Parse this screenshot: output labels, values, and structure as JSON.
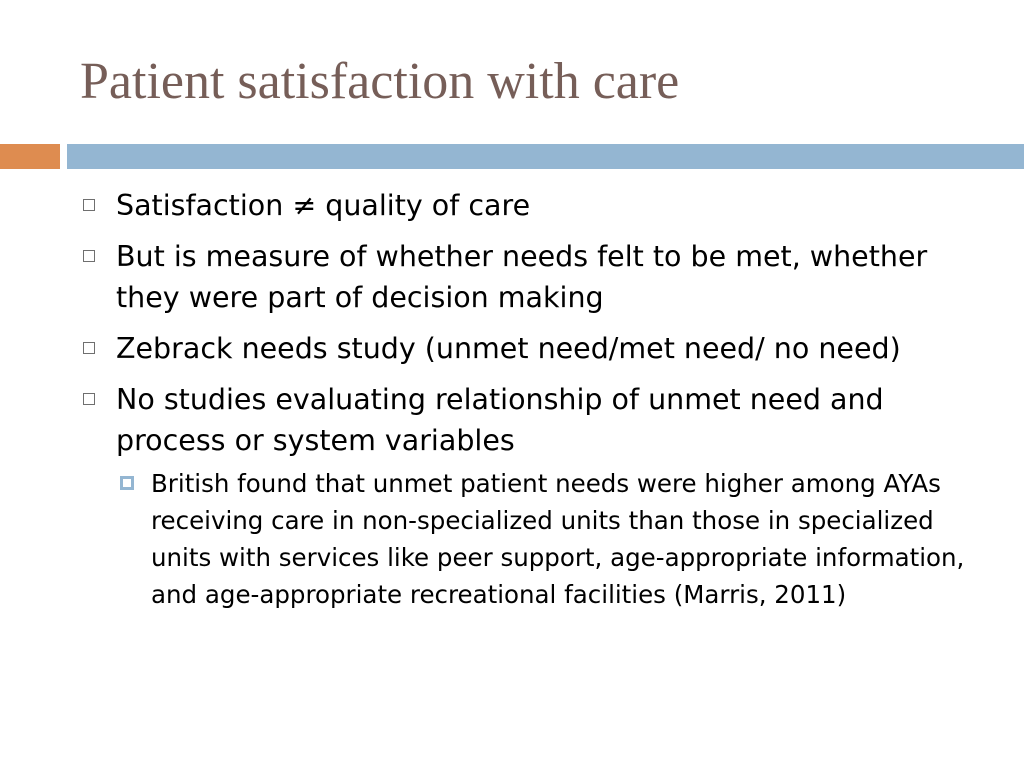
{
  "slide": {
    "title": "Patient satisfaction with care",
    "bullets": [
      {
        "text": "Satisfaction ≠ quality of care"
      },
      {
        "text": "But is measure of whether needs felt to be met, whether they were part of decision making"
      },
      {
        "text": "Zebrack needs study (unmet need/met need/ no need)"
      },
      {
        "text": "No studies evaluating relationship of unmet need and process or system variables"
      }
    ],
    "sub_bullets": [
      {
        "text": "British found that unmet patient needs were higher among AYAs receiving care in non-specialized units than those in specialized units with services like peer support, age-appropriate information, and age-appropriate recreational facilities (Marris, 2011)"
      }
    ]
  },
  "colors": {
    "title": "#765e58",
    "band_orange": "#de8c50",
    "band_blue": "#94b6d2",
    "bullet_outline": "#6f6f6f"
  },
  "icons": {
    "level1_bullet": "hollow-square-icon",
    "level2_bullet": "filled-square-icon"
  }
}
